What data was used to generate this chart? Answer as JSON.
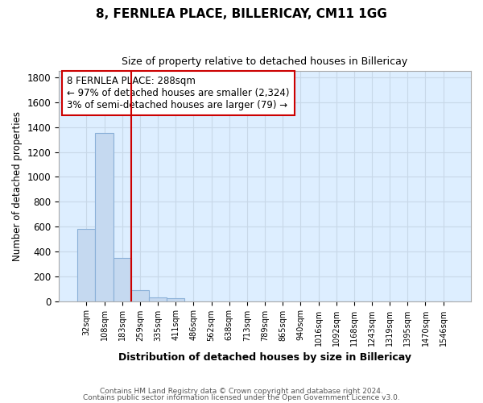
{
  "title": "8, FERNLEA PLACE, BILLERICAY, CM11 1GG",
  "subtitle": "Size of property relative to detached houses in Billericay",
  "xlabel": "Distribution of detached houses by size in Billericay",
  "ylabel": "Number of detached properties",
  "footnote1": "Contains HM Land Registry data © Crown copyright and database right 2024.",
  "footnote2": "Contains public sector information licensed under the Open Government Licence v3.0.",
  "categories": [
    "32sqm",
    "108sqm",
    "183sqm",
    "259sqm",
    "335sqm",
    "411sqm",
    "486sqm",
    "562sqm",
    "638sqm",
    "713sqm",
    "789sqm",
    "865sqm",
    "940sqm",
    "1016sqm",
    "1092sqm",
    "1168sqm",
    "1243sqm",
    "1319sqm",
    "1395sqm",
    "1470sqm",
    "1546sqm"
  ],
  "values": [
    580,
    1350,
    350,
    90,
    30,
    20,
    0,
    0,
    0,
    0,
    0,
    0,
    0,
    0,
    0,
    0,
    0,
    0,
    0,
    0,
    0
  ],
  "bar_color": "#c5d9f0",
  "bar_edge_color": "#8ab0d8",
  "background_color": "#ffffff",
  "plot_bg_color": "#ddeeff",
  "grid_color": "#c8d8e8",
  "vline_x": 2.5,
  "vline_color": "#cc0000",
  "annotation_line1": "8 FERNLEA PLACE: 288sqm",
  "annotation_line2": "← 97% of detached houses are smaller (2,324)",
  "annotation_line3": "3% of semi-detached houses are larger (79) →",
  "annotation_box_color": "#cc0000",
  "ylim": [
    0,
    1850
  ],
  "yticks": [
    0,
    200,
    400,
    600,
    800,
    1000,
    1200,
    1400,
    1600,
    1800
  ]
}
